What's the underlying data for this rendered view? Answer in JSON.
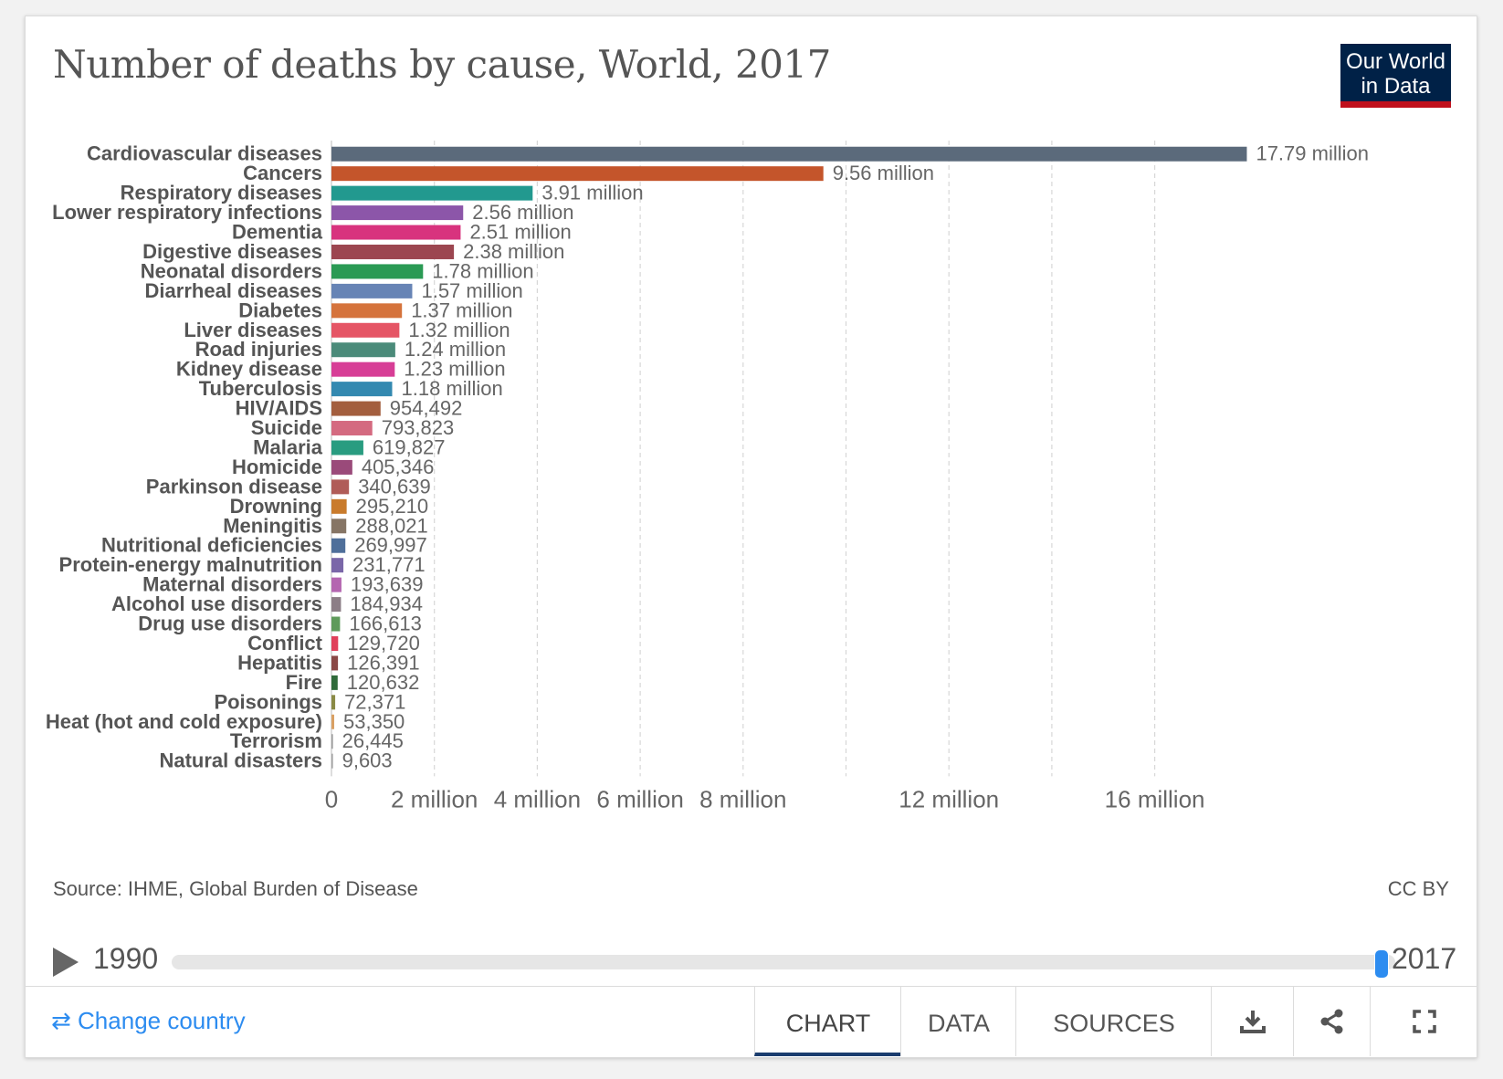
{
  "title": "Number of deaths by cause, World, 2017",
  "logo": {
    "line1": "Our World",
    "line2": "in Data"
  },
  "source": "Source: IHME, Global Burden of Disease",
  "license": "CC BY",
  "timeline": {
    "start_year": "1990",
    "end_year": "2017"
  },
  "footer": {
    "change_country": "Change country",
    "tabs": {
      "chart": "CHART",
      "data": "DATA",
      "sources": "SOURCES"
    }
  },
  "chart_data": {
    "type": "bar",
    "orientation": "horizontal",
    "title": "Number of deaths by cause, World, 2017",
    "xlim": [
      0,
      20000000
    ],
    "ticks": [
      {
        "value": 0,
        "label": "0"
      },
      {
        "value": 2000000,
        "label": "2 million"
      },
      {
        "value": 4000000,
        "label": "4 million"
      },
      {
        "value": 6000000,
        "label": "6 million"
      },
      {
        "value": 8000000,
        "label": "8 million"
      },
      {
        "value": 12000000,
        "label": "12 million"
      },
      {
        "value": 16000000,
        "label": "16 million"
      }
    ],
    "gridlines": [
      2000000,
      4000000,
      6000000,
      8000000,
      10000000,
      12000000,
      14000000,
      16000000
    ],
    "bars": [
      {
        "category": "Cardiovascular diseases",
        "value": 17790000,
        "label": "17.79 million",
        "color": "#5b6a7b"
      },
      {
        "category": "Cancers",
        "value": 9560000,
        "label": "9.56 million",
        "color": "#c4552b"
      },
      {
        "category": "Respiratory diseases",
        "value": 3910000,
        "label": "3.91 million",
        "color": "#22998f"
      },
      {
        "category": "Lower respiratory infections",
        "value": 2560000,
        "label": "2.56 million",
        "color": "#8c56a9"
      },
      {
        "category": "Dementia",
        "value": 2510000,
        "label": "2.51 million",
        "color": "#d8337e"
      },
      {
        "category": "Digestive diseases",
        "value": 2380000,
        "label": "2.38 million",
        "color": "#9c4650"
      },
      {
        "category": "Neonatal disorders",
        "value": 1780000,
        "label": "1.78 million",
        "color": "#2a9a54"
      },
      {
        "category": "Diarrheal diseases",
        "value": 1570000,
        "label": "1.57 million",
        "color": "#6784b5"
      },
      {
        "category": "Diabetes",
        "value": 1370000,
        "label": "1.37 million",
        "color": "#d5733c"
      },
      {
        "category": "Liver diseases",
        "value": 1320000,
        "label": "1.32 million",
        "color": "#e55565"
      },
      {
        "category": "Road injuries",
        "value": 1240000,
        "label": "1.24 million",
        "color": "#4b8b7a"
      },
      {
        "category": "Kidney disease",
        "value": 1230000,
        "label": "1.23 million",
        "color": "#d73e96"
      },
      {
        "category": "Tuberculosis",
        "value": 1180000,
        "label": "1.18 million",
        "color": "#3389b0"
      },
      {
        "category": "HIV/AIDS",
        "value": 954492,
        "label": "954,492",
        "color": "#a35e3e"
      },
      {
        "category": "Suicide",
        "value": 793823,
        "label": "793,823",
        "color": "#d46a80"
      },
      {
        "category": "Malaria",
        "value": 619827,
        "label": "619,827",
        "color": "#299c80"
      },
      {
        "category": "Homicide",
        "value": 405346,
        "label": "405,346",
        "color": "#9a4a7a"
      },
      {
        "category": "Parkinson disease",
        "value": 340639,
        "label": "340,639",
        "color": "#b05c58"
      },
      {
        "category": "Drowning",
        "value": 295210,
        "label": "295,210",
        "color": "#c97b2c"
      },
      {
        "category": "Meningitis",
        "value": 288021,
        "label": "288,021",
        "color": "#867565"
      },
      {
        "category": "Nutritional deficiencies",
        "value": 269997,
        "label": "269,997",
        "color": "#4f6f9a"
      },
      {
        "category": "Protein-energy malnutrition",
        "value": 231771,
        "label": "231,771",
        "color": "#7a67a8"
      },
      {
        "category": "Maternal disorders",
        "value": 193639,
        "label": "193,639",
        "color": "#b466b0"
      },
      {
        "category": "Alcohol use disorders",
        "value": 184934,
        "label": "184,934",
        "color": "#8c7e86"
      },
      {
        "category": "Drug use disorders",
        "value": 166613,
        "label": "166,613",
        "color": "#5f9a5b"
      },
      {
        "category": "Conflict",
        "value": 129720,
        "label": "129,720",
        "color": "#e0405a"
      },
      {
        "category": "Hepatitis",
        "value": 126391,
        "label": "126,391",
        "color": "#8a4846"
      },
      {
        "category": "Fire",
        "value": 120632,
        "label": "120,632",
        "color": "#2f6a3a"
      },
      {
        "category": "Poisonings",
        "value": 72371,
        "label": "72,371",
        "color": "#8a8a45"
      },
      {
        "category": "Heat (hot and cold exposure)",
        "value": 53350,
        "label": "53,350",
        "color": "#d9a063"
      },
      {
        "category": "Terrorism",
        "value": 26445,
        "label": "26,445",
        "color": "#9a9a9a"
      },
      {
        "category": "Natural disasters",
        "value": 9603,
        "label": "9,603",
        "color": "#a0a0a0"
      }
    ]
  }
}
